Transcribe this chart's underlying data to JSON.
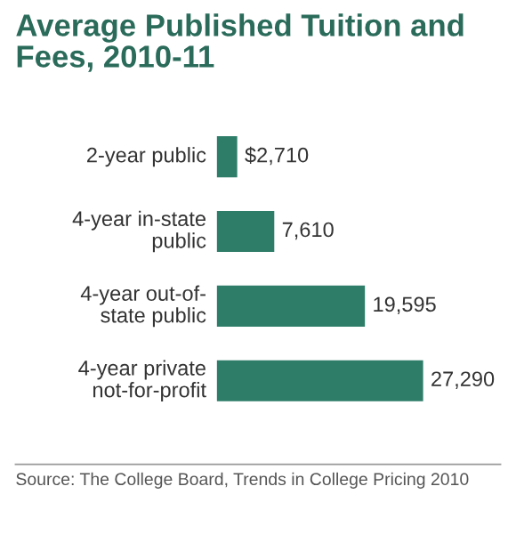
{
  "chart_data": {
    "type": "bar",
    "orientation": "horizontal",
    "title": "Average Published Tuition and\nFees, 2010-11",
    "categories": [
      "2-year public",
      "4-year in-state\npublic",
      "4-year out-of-\nstate public",
      "4-year private\nnot-for-profit"
    ],
    "values": [
      2710,
      7610,
      19595,
      27290
    ],
    "value_labels": [
      "$2,710",
      "7,610",
      "19,595",
      "27,290"
    ],
    "color": "#2e7d69",
    "annotations": [
      "Source: The College Board, Trends in College Pricing 2010"
    ]
  }
}
